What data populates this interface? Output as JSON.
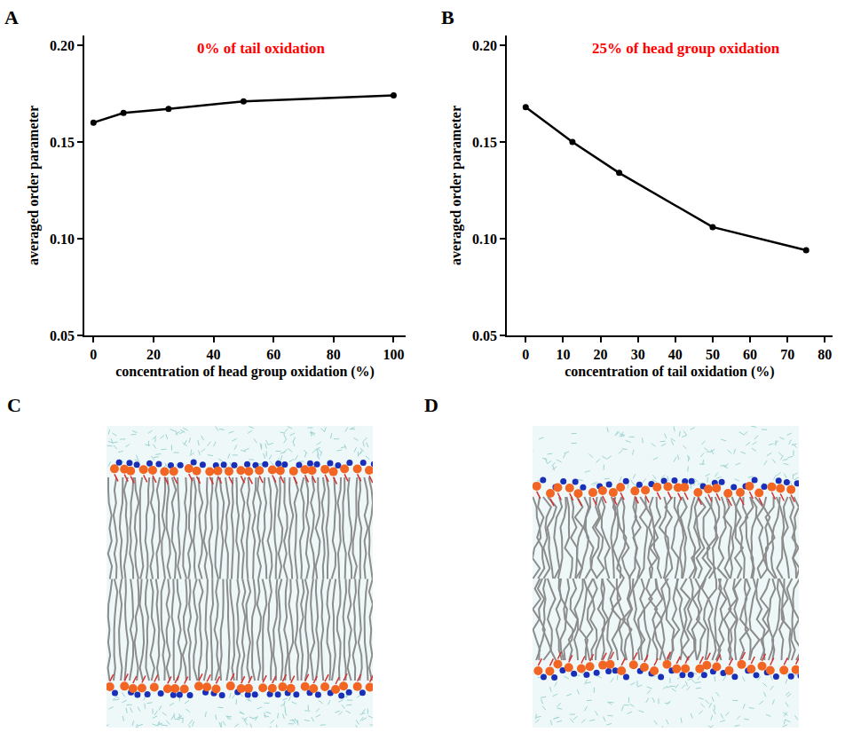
{
  "chart_data": [
    {
      "panel": "A",
      "type": "line",
      "title": "0% of tail oxidation",
      "x_label": "concentration of head group oxidation (%)",
      "y_label": "averaged order parameter",
      "x": [
        0,
        10,
        25,
        50,
        100
      ],
      "values": [
        0.16,
        0.165,
        0.167,
        0.171,
        0.174
      ],
      "color": "#000000",
      "marker": "circle",
      "xlim": [
        -3,
        104
      ],
      "xticks": [
        0,
        20,
        40,
        60,
        80,
        100
      ],
      "ylim": [
        0.05,
        0.205
      ],
      "yticks": [
        0.05,
        {
          "value": 0.1,
          "label": "0.10"
        },
        0.15,
        {
          "value": 0.2,
          "label": "0.20"
        }
      ],
      "grid": false
    },
    {
      "panel": "B",
      "type": "line",
      "title": "25% of head group oxidation",
      "x_label": "concentration of tail oxidation (%)",
      "y_label": "averaged order parameter",
      "x": [
        0,
        12.5,
        25,
        50,
        75
      ],
      "values": [
        0.168,
        0.15,
        0.134,
        0.106,
        0.094
      ],
      "color": "#000000",
      "marker": "circle",
      "xlim": [
        -5,
        82
      ],
      "xticks": [
        0,
        10,
        20,
        30,
        40,
        50,
        60,
        70,
        80
      ],
      "ylim": [
        0.05,
        0.205
      ],
      "yticks": [
        0.05,
        {
          "value": 0.1,
          "label": "0.10"
        },
        0.15,
        {
          "value": 0.2,
          "label": "0.20"
        }
      ],
      "grid": false
    }
  ],
  "panels": [
    {
      "label": "C"
    },
    {
      "label": "D"
    }
  ]
}
